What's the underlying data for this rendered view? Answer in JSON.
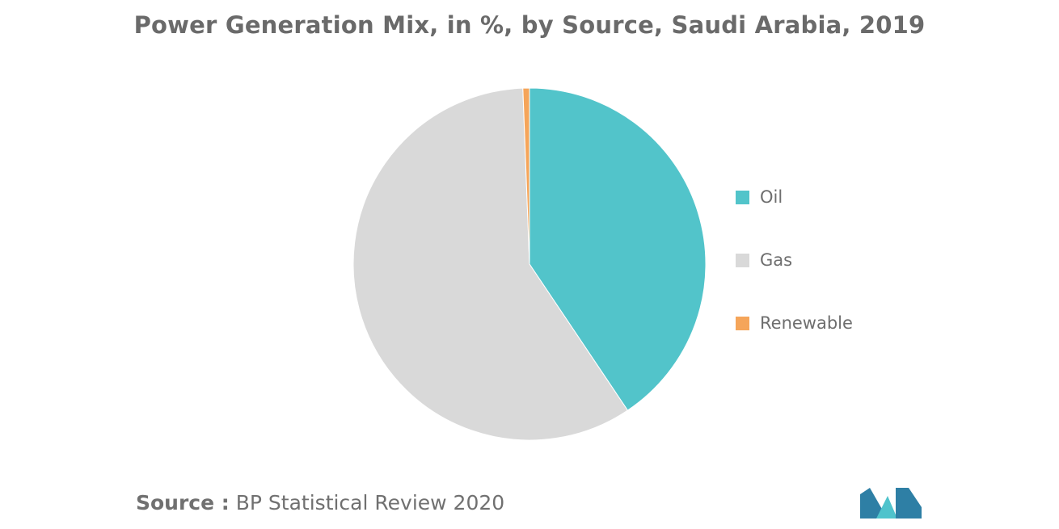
{
  "title": "Power Generation Mix, in %, by Source, Saudi Arabia, 2019",
  "source": {
    "label": "Source :",
    "text": "BP Statistical Review 2020"
  },
  "colors": {
    "oil": "#52c4ca",
    "gas": "#d9d9d9",
    "renewable": "#f5a55a",
    "logo_dark": "#2e7fa5",
    "logo_light": "#4fc3cc"
  },
  "logo": {
    "icon": "mordor-intelligence-logo-icon"
  },
  "chart_data": {
    "type": "pie",
    "categories": [
      "Oil",
      "Gas",
      "Renewable"
    ],
    "values": [
      40.6,
      58.8,
      0.6
    ],
    "colors": [
      "#52c4ca",
      "#d9d9d9",
      "#f5a55a"
    ],
    "start_angle": "12 o'clock",
    "direction": "clockwise",
    "legend_position": "right",
    "title": "Power Generation Mix, in %, by Source, Saudi Arabia, 2019"
  }
}
